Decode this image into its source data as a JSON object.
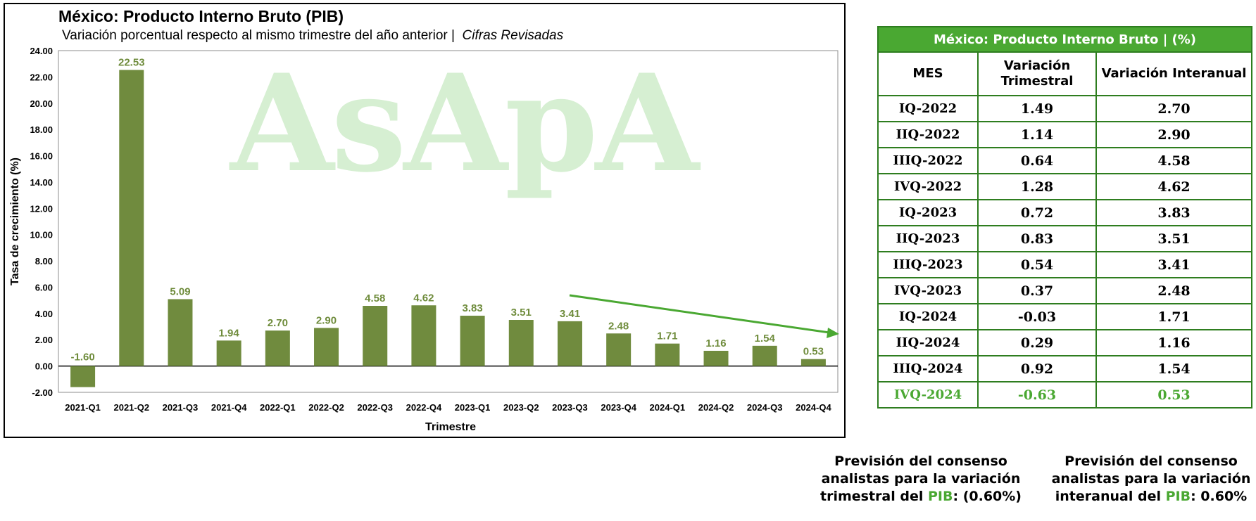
{
  "chart": {
    "title": "México: Producto Interno Bruto (PIB)",
    "subtitle": "Variación porcentual respecto al mismo trimestre del año anterior |",
    "subtitle_italic": "Cifras Revisadas",
    "watermark": "AsApA",
    "bar_color": "#708b3e",
    "label_color": "#6f8c3c",
    "trend_color": "#4aa832"
  },
  "chart_data": {
    "type": "bar",
    "title": "México: Producto Interno Bruto (PIB)",
    "xlabel": "Trimestre",
    "ylabel": "Tasa de crecimiento (%)",
    "ylim": [
      -2,
      24
    ],
    "yticks": [
      "-2.00",
      "0.00",
      "2.00",
      "4.00",
      "6.00",
      "8.00",
      "10.00",
      "12.00",
      "14.00",
      "16.00",
      "18.00",
      "20.00",
      "22.00",
      "24.00"
    ],
    "categories": [
      "2021-Q1",
      "2021-Q2",
      "2021-Q3",
      "2021-Q4",
      "2022-Q1",
      "2022-Q2",
      "2022-Q3",
      "2022-Q4",
      "2023-Q1",
      "2023-Q2",
      "2023-Q3",
      "2023-Q4",
      "2024-Q1",
      "2024-Q2",
      "2024-Q3",
      "2024-Q4"
    ],
    "values": [
      -1.6,
      22.53,
      5.09,
      1.94,
      2.7,
      2.9,
      4.58,
      4.62,
      3.83,
      3.51,
      3.41,
      2.48,
      1.71,
      1.16,
      1.54,
      0.53
    ],
    "value_labels": [
      "-1.60",
      "22.53",
      "5.09",
      "1.94",
      "2.70",
      "2.90",
      "4.58",
      "4.62",
      "3.83",
      "3.51",
      "3.41",
      "2.48",
      "1.71",
      "1.16",
      "1.54",
      "0.53"
    ],
    "grid": false,
    "legend": "none"
  },
  "table": {
    "title": "México: Producto Interno Bruto | (%)",
    "columns": [
      "MES",
      "Variación Trimestral",
      "Variación Interanual"
    ],
    "rows": [
      [
        "IQ-2022",
        "1.49",
        "2.70"
      ],
      [
        "IIQ-2022",
        "1.14",
        "2.90"
      ],
      [
        "IIIQ-2022",
        "0.64",
        "4.58"
      ],
      [
        "IVQ-2022",
        "1.28",
        "4.62"
      ],
      [
        "IQ-2023",
        "0.72",
        "3.83"
      ],
      [
        "IIQ-2023",
        "0.83",
        "3.51"
      ],
      [
        "IIIQ-2023",
        "0.54",
        "3.41"
      ],
      [
        "IVQ-2023",
        "0.37",
        "2.48"
      ],
      [
        "IQ-2024",
        "-0.03",
        "1.71"
      ],
      [
        "IIQ-2024",
        "0.29",
        "1.16"
      ],
      [
        "IIIQ-2024",
        "0.92",
        "1.54"
      ],
      [
        "IVQ-2024",
        "-0.63",
        "0.53"
      ]
    ]
  },
  "forecasts": {
    "quarterly": {
      "line1": "Previsión del consenso",
      "line2": "analistas para la variación",
      "line3_prefix": "trimestral del ",
      "highlight": "PIB",
      "value": ": (0.60%)"
    },
    "annual": {
      "line1": "Previsión del consenso",
      "line2": "analistas para la variación",
      "line3_prefix": "interanual del ",
      "highlight": "PIB",
      "value": ": 0.60%"
    }
  }
}
